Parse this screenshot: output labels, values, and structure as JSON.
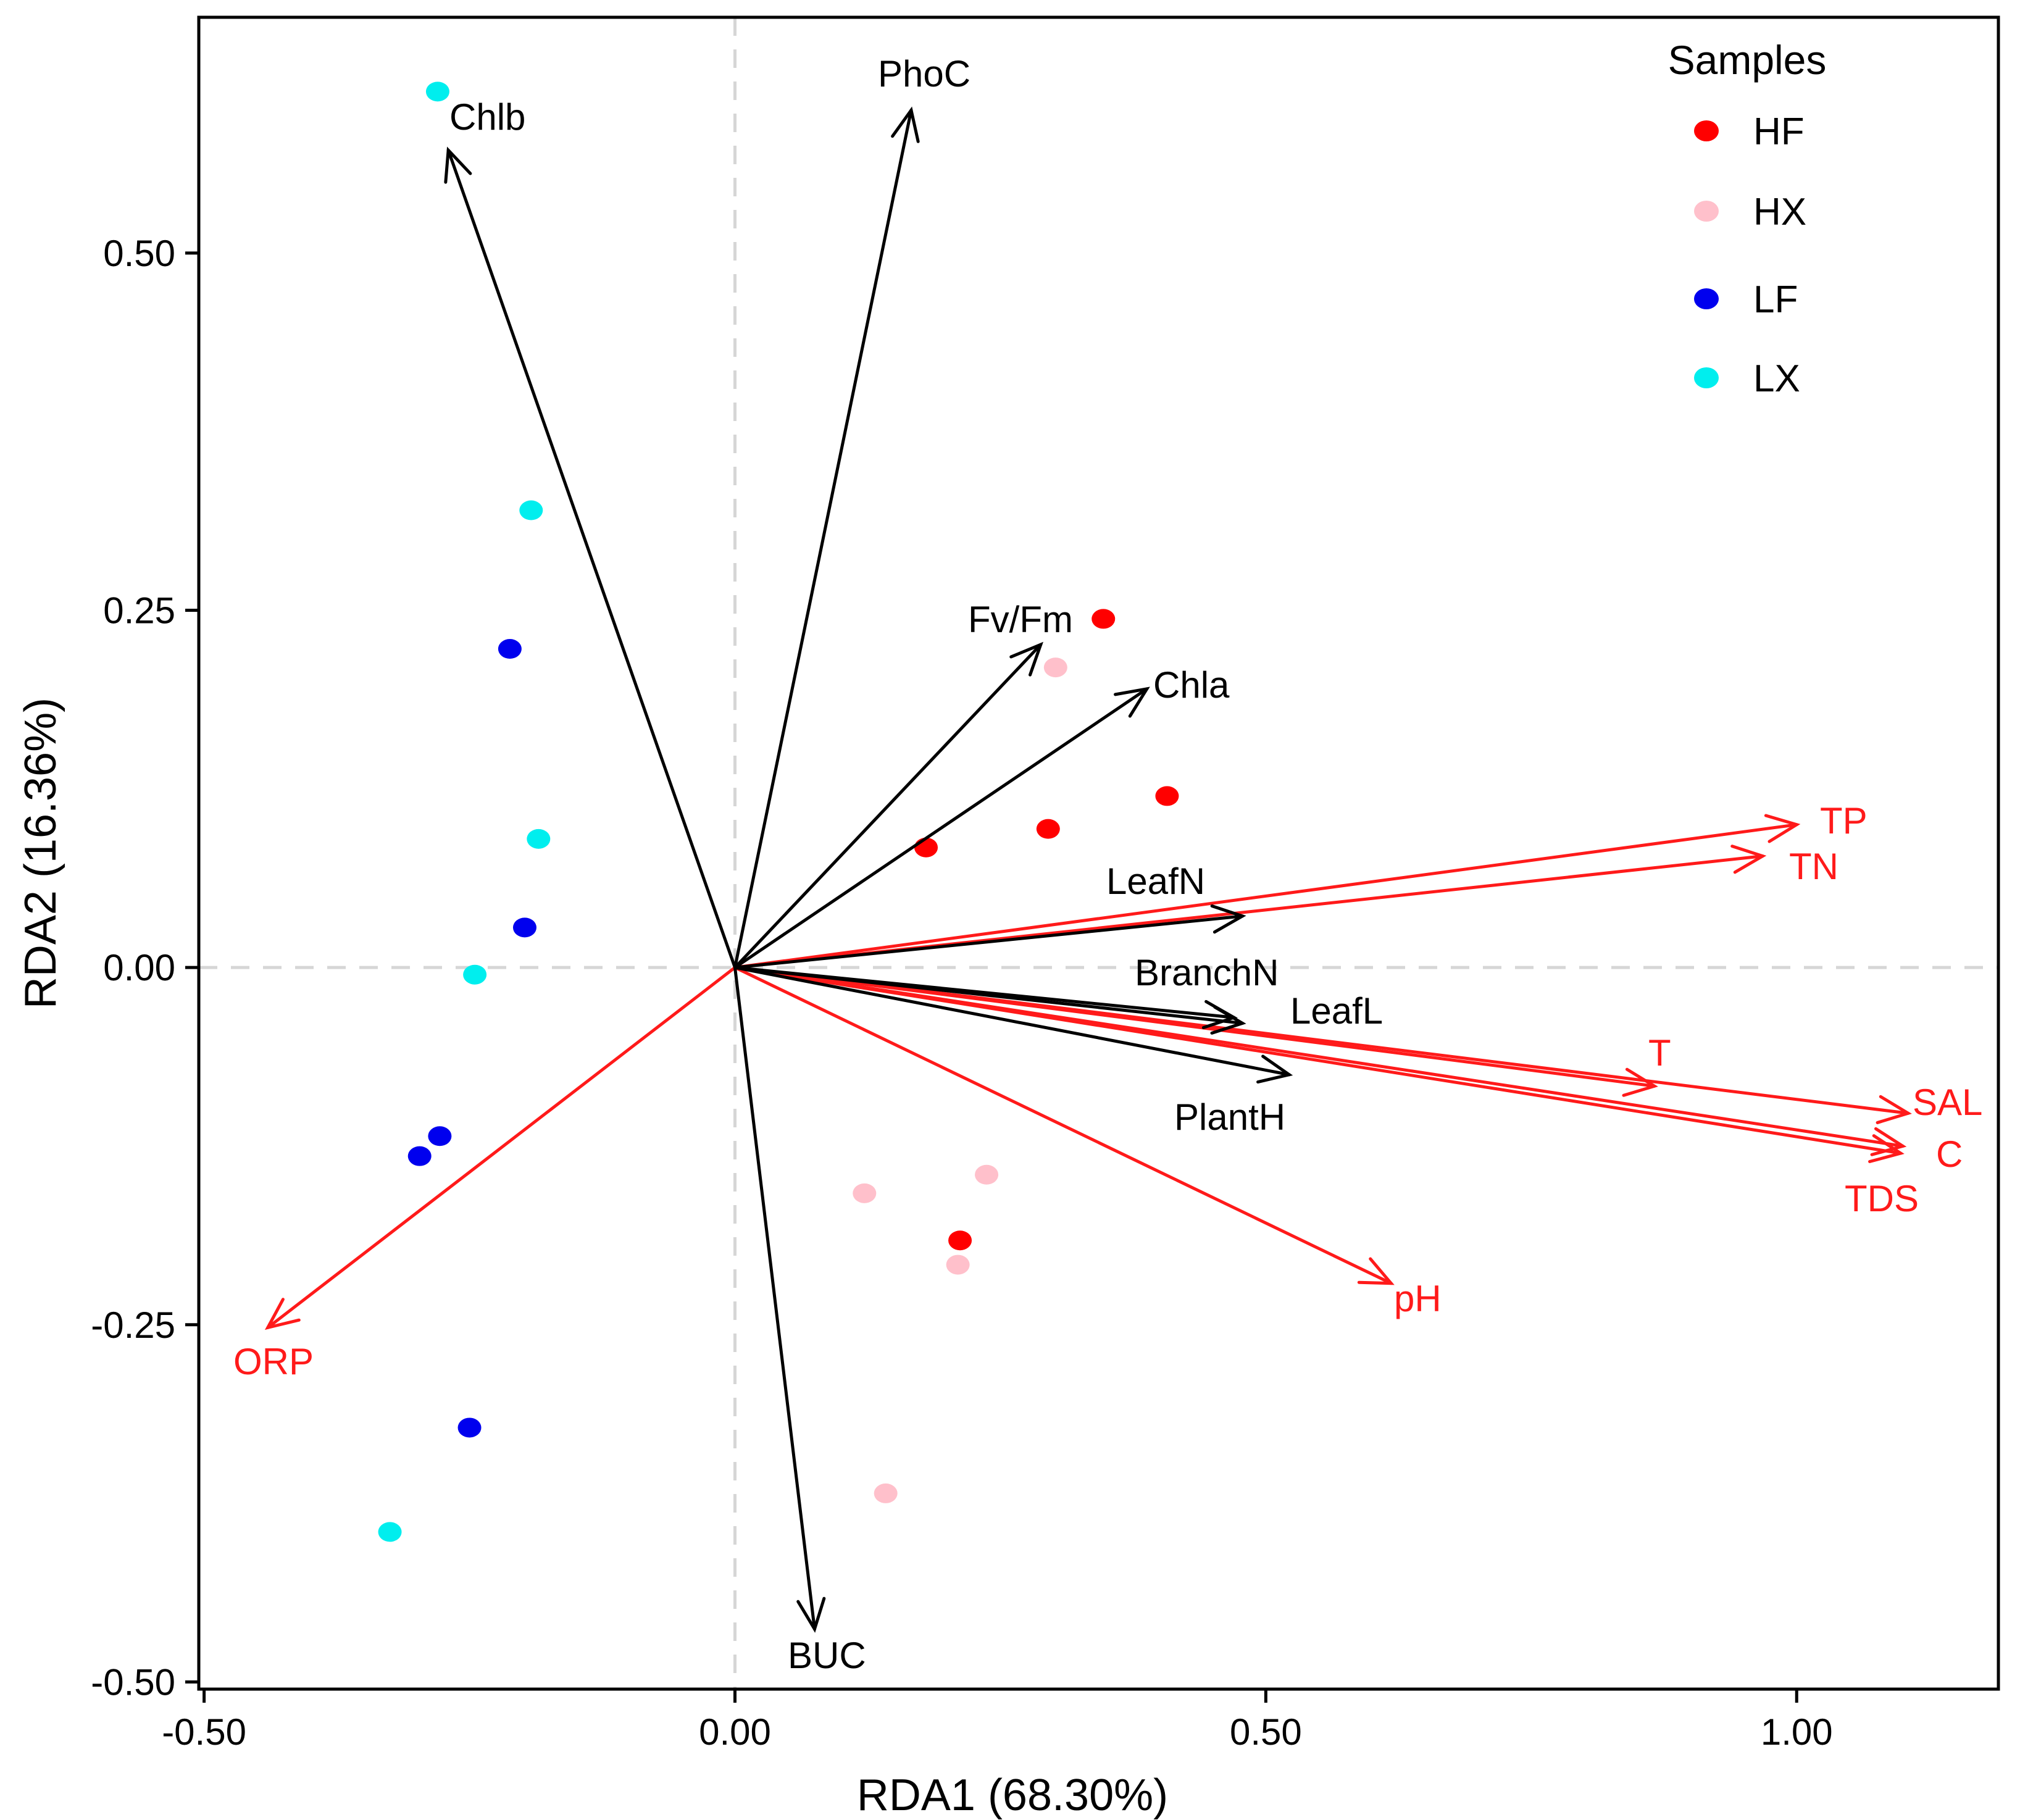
{
  "chart_data": {
    "type": "scatter",
    "subtype": "rda-biplot",
    "xlabel": "RDA1 (68.30%)",
    "ylabel": "RDA2 (16.36%)",
    "xlim": [
      -0.505,
      1.19
    ],
    "ylim": [
      -0.505,
      0.665
    ],
    "x_ticks": [
      -0.5,
      0.0,
      0.5,
      1.0
    ],
    "x_tick_labels": [
      "-0.50",
      "0.00",
      "0.50",
      "1.00"
    ],
    "y_ticks": [
      -0.5,
      -0.25,
      0.0,
      0.25,
      0.5
    ],
    "y_tick_labels": [
      "-0.50",
      "-0.25",
      "0.00",
      "0.25",
      "0.50"
    ],
    "zero_lines": true,
    "legend": {
      "title": "Samples",
      "position": "top-right",
      "entries": [
        {
          "label": "HF",
          "color": "#ff0000"
        },
        {
          "label": "HX",
          "color": "#ffc0cb"
        },
        {
          "label": "LF",
          "color": "#0000ee"
        },
        {
          "label": "LX",
          "color": "#00eeee"
        }
      ]
    },
    "series": [
      {
        "name": "HF",
        "color": "#ff0000",
        "points": [
          [
            0.347,
            0.244
          ],
          [
            0.407,
            0.12
          ],
          [
            0.295,
            0.097
          ],
          [
            0.18,
            0.084
          ],
          [
            0.212,
            -0.191
          ]
        ]
      },
      {
        "name": "HX",
        "color": "#ffc0cb",
        "points": [
          [
            0.302,
            0.21
          ],
          [
            0.237,
            -0.145
          ],
          [
            0.122,
            -0.158
          ],
          [
            0.21,
            -0.208
          ],
          [
            0.142,
            -0.368
          ]
        ]
      },
      {
        "name": "LF",
        "color": "#0000ee",
        "points": [
          [
            -0.212,
            0.223
          ],
          [
            -0.198,
            0.028
          ],
          [
            -0.278,
            -0.118
          ],
          [
            -0.297,
            -0.132
          ],
          [
            -0.25,
            -0.322
          ]
        ]
      },
      {
        "name": "LX",
        "color": "#00eeee",
        "points": [
          [
            -0.28,
            0.613
          ],
          [
            -0.192,
            0.32
          ],
          [
            -0.185,
            0.09
          ],
          [
            -0.245,
            -0.005
          ],
          [
            -0.325,
            -0.395
          ]
        ]
      }
    ],
    "response_vectors": {
      "color": "#000000",
      "items": [
        {
          "label": "Chlb",
          "x": -0.27,
          "y": 0.572
        },
        {
          "label": "PhoC",
          "x": 0.166,
          "y": 0.6
        },
        {
          "label": "Fv/Fm",
          "x": 0.288,
          "y": 0.226
        },
        {
          "label": "Chla",
          "x": 0.388,
          "y": 0.195
        },
        {
          "label": "LeafN",
          "x": 0.478,
          "y": 0.036
        },
        {
          "label": "BranchN",
          "x": 0.47,
          "y": -0.035
        },
        {
          "label": "LeafL",
          "x": 0.478,
          "y": -0.039
        },
        {
          "label": "PlantH",
          "x": 0.522,
          "y": -0.075
        },
        {
          "label": "BUC",
          "x": 0.075,
          "y": -0.463
        }
      ]
    },
    "explanatory_vectors": {
      "color": "#ff1a1a",
      "items": [
        {
          "label": "TP",
          "x": 1.0,
          "y": 0.1
        },
        {
          "label": "TN",
          "x": 0.968,
          "y": 0.078
        },
        {
          "label": "T",
          "x": 0.866,
          "y": -0.083
        },
        {
          "label": "SAL",
          "x": 1.105,
          "y": -0.102
        },
        {
          "label": "C",
          "x": 1.1,
          "y": -0.125
        },
        {
          "label": "TDS",
          "x": 1.098,
          "y": -0.13
        },
        {
          "label": "pH",
          "x": 0.618,
          "y": -0.221
        },
        {
          "label": "ORP",
          "x": -0.44,
          "y": -0.252
        }
      ]
    }
  }
}
